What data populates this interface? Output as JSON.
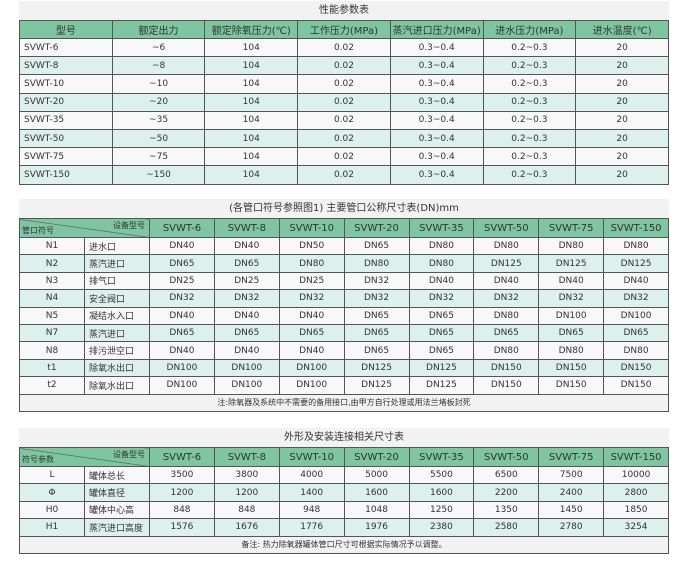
{
  "t1": {
    "title": "性能参数表",
    "headers": [
      "型号",
      "额定出力",
      "额定除氧压力(℃)",
      "工作压力(MPa)",
      "蒸汽进口压力(MPa)",
      "进水压力(MPa)",
      "进水温度(℃)"
    ],
    "rows": [
      [
        "SVWT-6",
        "~6",
        "104",
        "0.02",
        "0.3~0.4",
        "0.2~0.3",
        "20"
      ],
      [
        "SVWT-8",
        "~8",
        "104",
        "0.02",
        "0.3~0.4",
        "0.2~0.3",
        "20"
      ],
      [
        "SVWT-10",
        "~10",
        "104",
        "0.02",
        "0.3~0.4",
        "0.2~0.3",
        "20"
      ],
      [
        "SVWT-20",
        "~20",
        "104",
        "0.02",
        "0.3~0.4",
        "0.2~0.3",
        "20"
      ],
      [
        "SVWT-35",
        "~35",
        "104",
        "0.02",
        "0.3~0.4",
        "0.2~0.3",
        "20"
      ],
      [
        "SVWT-50",
        "~50",
        "104",
        "0.02",
        "0.3~0.4",
        "0.2~0.3",
        "20"
      ],
      [
        "SVWT-75",
        "~75",
        "104",
        "0.02",
        "0.3~0.4",
        "0.2~0.3",
        "20"
      ],
      [
        "SVWT-150",
        "~150",
        "104",
        "0.02",
        "0.3~0.4",
        "0.2~0.3",
        "20"
      ]
    ]
  },
  "t2": {
    "title": "(各管口符号参照图1) 主要管口公称尺寸表(DN)mm",
    "corner_top": "设备型号",
    "corner_bottom": "管口符号",
    "models": [
      "SVWT-6",
      "SVWT-8",
      "SVWT-10",
      "SVWT-20",
      "SVWT-35",
      "SVWT-50",
      "SVWT-75",
      "SVWT-150"
    ],
    "rows": [
      [
        "N1",
        "进水口",
        "DN40",
        "DN40",
        "DN50",
        "DN65",
        "DN80",
        "DN80",
        "DN80",
        "DN80"
      ],
      [
        "N2",
        "蒸汽进口",
        "DN65",
        "DN65",
        "DN80",
        "DN80",
        "DN80",
        "DN125",
        "DN125",
        "DN125"
      ],
      [
        "N3",
        "排气口",
        "DN25",
        "DN25",
        "DN25",
        "DN32",
        "DN40",
        "DN40",
        "DN40",
        "DN40"
      ],
      [
        "N4",
        "安全阀口",
        "DN32",
        "DN32",
        "DN32",
        "DN32",
        "DN32",
        "DN32",
        "DN32",
        "DN32"
      ],
      [
        "N5",
        "凝结水入口",
        "DN40",
        "DN40",
        "DN40",
        "DN65",
        "DN65",
        "DN80",
        "DN100",
        "DN100"
      ],
      [
        "N7",
        "蒸汽进口",
        "DN65",
        "DN65",
        "DN65",
        "DN65",
        "DN65",
        "DN65",
        "DN65",
        "DN65"
      ],
      [
        "N8",
        "排污泄空口",
        "DN40",
        "DN40",
        "DN40",
        "DN65",
        "DN65",
        "DN80",
        "DN80",
        "DN80"
      ],
      [
        "t1",
        "除氧水出口",
        "DN100",
        "DN100",
        "DN100",
        "DN125",
        "DN125",
        "DN150",
        "DN150",
        "DN150"
      ],
      [
        "t2",
        "除氧水出口",
        "DN100",
        "DN100",
        "DN100",
        "DN125",
        "DN125",
        "DN150",
        "DN150",
        "DN150"
      ]
    ],
    "note": "注:除氧器及系统中不需要的备用接口,由甲方自行处理或用法兰堵板封死"
  },
  "t3": {
    "title": "外形及安装连接相关尺寸表",
    "corner_top": "设备型号",
    "corner_bottom": "符号参数",
    "models": [
      "SVWT-6",
      "SVWT-8",
      "SVWT-10",
      "SVWT-20",
      "SVWT-35",
      "SVWT-50",
      "SVWT-75",
      "SVWT-150"
    ],
    "rows": [
      [
        "L",
        "罐体总长",
        "3500",
        "3800",
        "4000",
        "5000",
        "5500",
        "6500",
        "7500",
        "10000"
      ],
      [
        "Φ",
        "罐体直径",
        "1200",
        "1200",
        "1400",
        "1600",
        "1600",
        "2200",
        "2400",
        "2800"
      ],
      [
        "H0",
        "罐体中心高",
        "848",
        "848",
        "948",
        "1048",
        "1250",
        "1350",
        "1450",
        "1850"
      ],
      [
        "H1",
        "蒸汽进口高度",
        "1576",
        "1676",
        "1776",
        "1976",
        "2380",
        "2580",
        "2780",
        "3254"
      ]
    ],
    "note": "备注: 热力除氧器罐体管口尺寸可根据实际情况予以调整。"
  }
}
